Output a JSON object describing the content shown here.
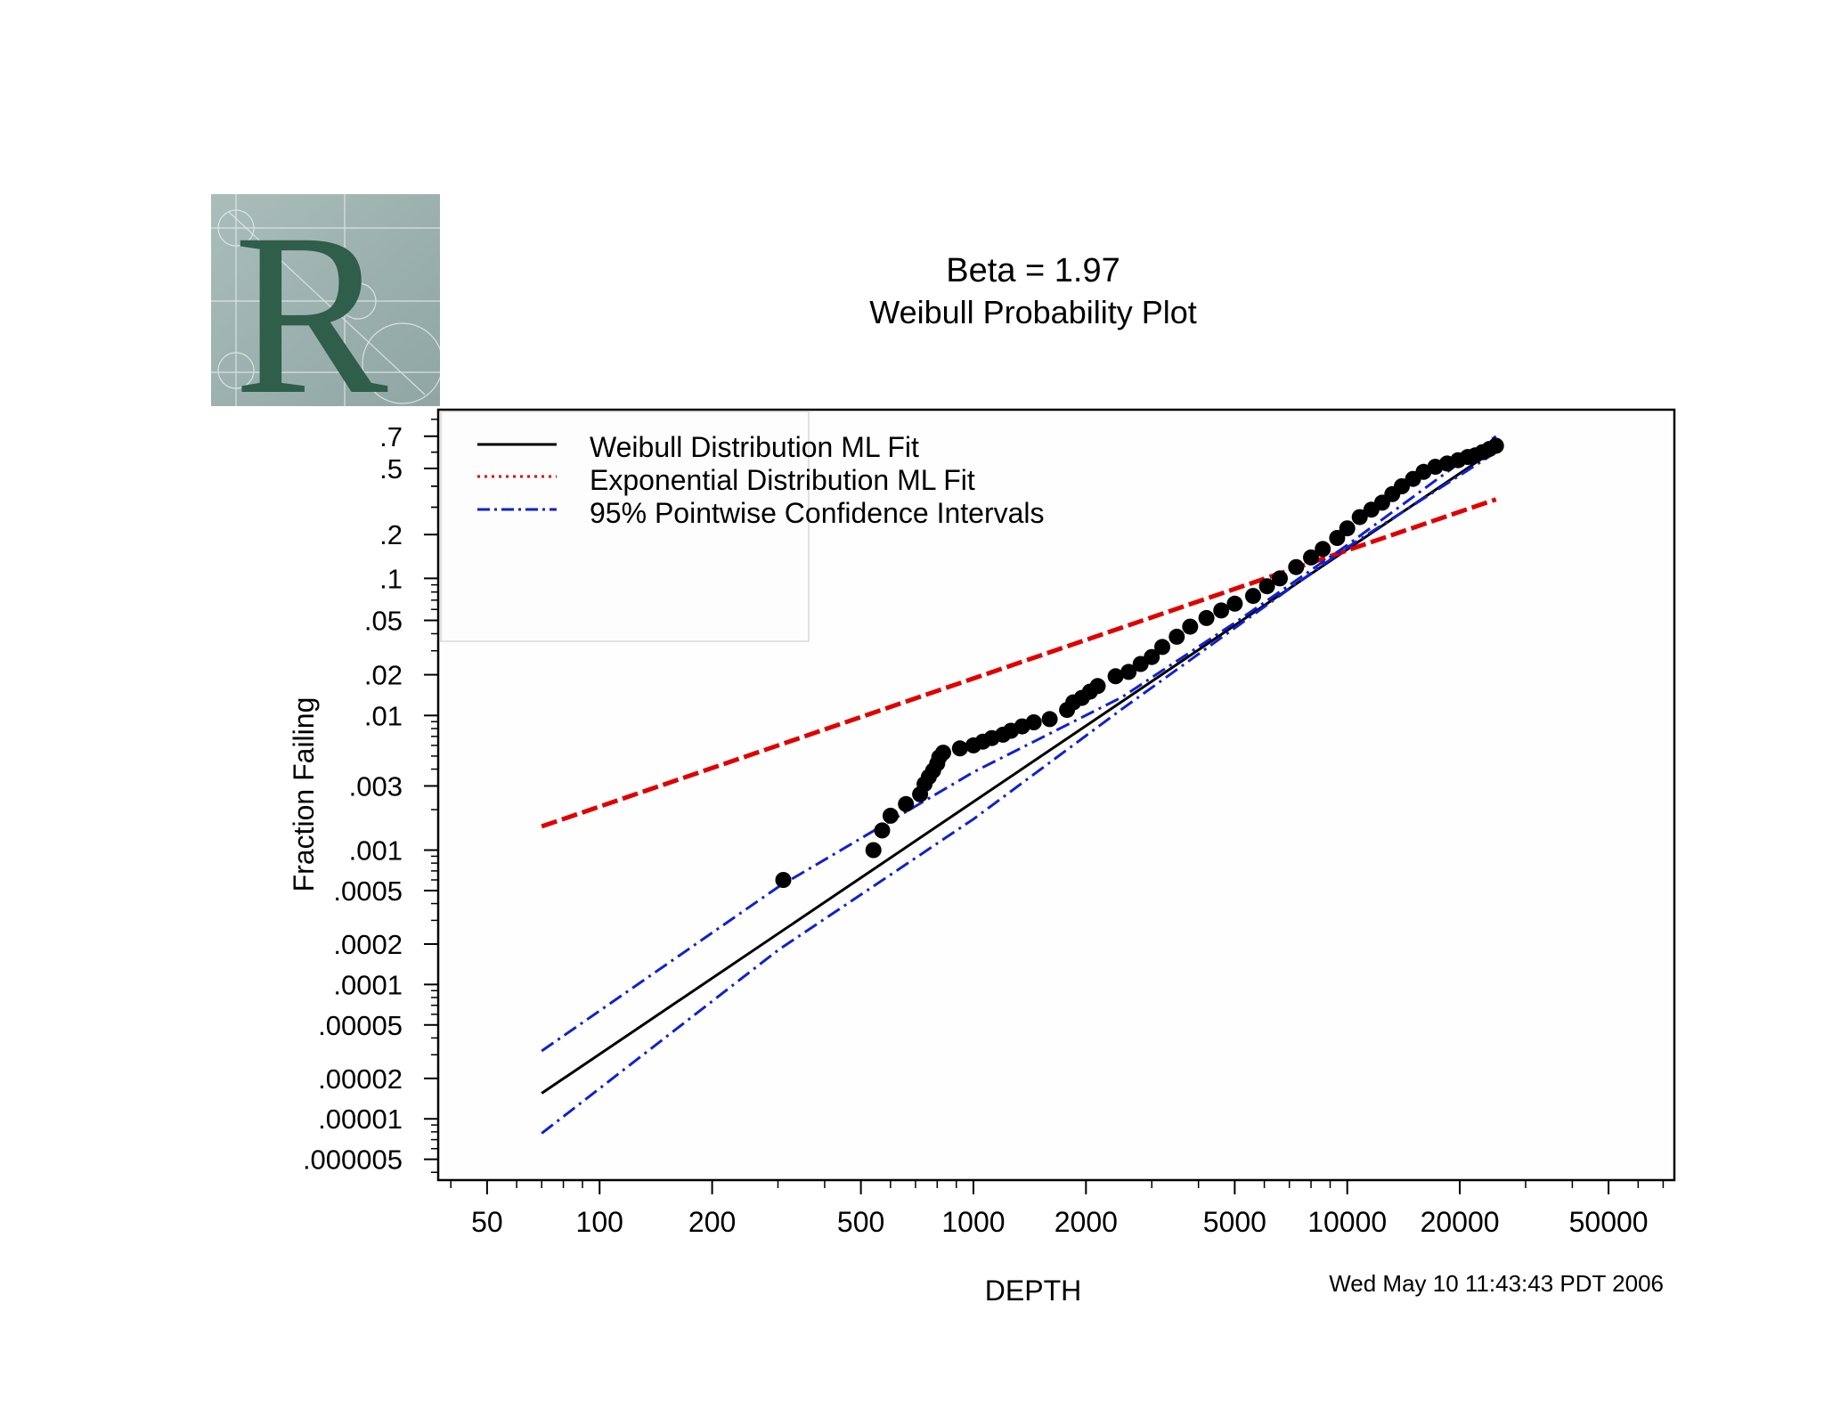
{
  "logo": {
    "letter": "R",
    "colors": {
      "bg": "#9fb3b1",
      "letter": "#2f5e4b"
    }
  },
  "chart_data": {
    "type": "scatter",
    "title": "Beta = 1.97",
    "subtitle": "Weibull Probability Plot",
    "xlabel": "DEPTH",
    "ylabel": "Fraction Failing",
    "timestamp": "Wed May 10 11:43:43 PDT 2006",
    "x_scale": "log10",
    "y_scale": "weibull",
    "xlim": [
      37,
      75000
    ],
    "ylim": [
      3.5e-06,
      0.85
    ],
    "x_ticks": [
      50,
      100,
      200,
      500,
      1000,
      2000,
      5000,
      10000,
      20000,
      50000
    ],
    "x_tick_labels": [
      "50",
      "100",
      "200",
      "500",
      "1000",
      "2000",
      "5000",
      "10000",
      "20000",
      "50000"
    ],
    "y_ticks": [
      0.7,
      0.5,
      0.2,
      0.1,
      0.05,
      0.02,
      0.01,
      0.003,
      0.001,
      0.0005,
      0.0002,
      0.0001,
      5e-05,
      2e-05,
      1e-05,
      5e-06
    ],
    "y_tick_labels": [
      ".7",
      ".5",
      ".2",
      ".1",
      ".05",
      ".02",
      ".01",
      ".003",
      ".001",
      ".0005",
      ".0002",
      ".0001",
      ".00005",
      ".00002",
      ".00001",
      ".000005"
    ],
    "legend": {
      "position": "top-left",
      "entries": [
        {
          "label": "Weibull Distribution ML Fit",
          "color": "#000000",
          "style": "solid"
        },
        {
          "label": "Exponential Distribution ML Fit",
          "color": "#e00000",
          "style": "dotted"
        },
        {
          "label": "95% Pointwise Confidence Intervals",
          "color": "#1020d0",
          "style": "dashdot"
        }
      ]
    },
    "series": [
      {
        "name": "Weibull Distribution ML Fit",
        "kind": "line",
        "color": "#000000",
        "x": [
          70,
          25000
        ],
        "y": [
          1.55e-05,
          0.62
        ]
      },
      {
        "name": "Exponential Distribution ML Fit",
        "kind": "line",
        "color": "#e00000",
        "x": [
          70,
          25000
        ],
        "y": [
          0.0015,
          0.335
        ]
      },
      {
        "name": "95% CI Upper",
        "kind": "line",
        "color": "#1020d0",
        "x": [
          70,
          300,
          1000,
          2500,
          5000,
          10000,
          25000
        ],
        "y": [
          3.2e-05,
          0.00053,
          0.0038,
          0.0137,
          0.048,
          0.17,
          0.7
        ]
      },
      {
        "name": "95% CI Lower",
        "kind": "line",
        "color": "#1020d0",
        "x": [
          70,
          300,
          1000,
          2500,
          5000,
          10000,
          25000
        ],
        "y": [
          7.8e-06,
          0.00018,
          0.0017,
          0.0112,
          0.044,
          0.164,
          0.6
        ]
      },
      {
        "name": "Observed",
        "kind": "points",
        "color": "#000000",
        "x": [
          310,
          540,
          570,
          600,
          660,
          720,
          740,
          760,
          780,
          800,
          810,
          830,
          920,
          1000,
          1060,
          1120,
          1200,
          1260,
          1350,
          1450,
          1600,
          1780,
          1850,
          1950,
          2050,
          2150,
          2400,
          2600,
          2800,
          3000,
          3200,
          3500,
          3800,
          4200,
          4600,
          5000,
          5600,
          6100,
          6600,
          7300,
          8000,
          8600,
          9400,
          10000,
          10800,
          11600,
          12400,
          13200,
          14000,
          15000,
          16000,
          17200,
          18500,
          19800,
          21000,
          22000,
          23000,
          24000,
          25000
        ],
        "y": [
          0.0006,
          0.001,
          0.0014,
          0.0018,
          0.0022,
          0.0026,
          0.0031,
          0.0035,
          0.0039,
          0.0044,
          0.0049,
          0.0053,
          0.0057,
          0.006,
          0.0064,
          0.0068,
          0.0072,
          0.0077,
          0.0083,
          0.0089,
          0.0094,
          0.011,
          0.0125,
          0.0135,
          0.015,
          0.0165,
          0.0195,
          0.021,
          0.024,
          0.027,
          0.032,
          0.038,
          0.045,
          0.052,
          0.059,
          0.066,
          0.075,
          0.088,
          0.1,
          0.12,
          0.14,
          0.16,
          0.19,
          0.22,
          0.26,
          0.29,
          0.32,
          0.36,
          0.4,
          0.44,
          0.48,
          0.51,
          0.53,
          0.55,
          0.57,
          0.58,
          0.6,
          0.62,
          0.64
        ]
      }
    ]
  }
}
